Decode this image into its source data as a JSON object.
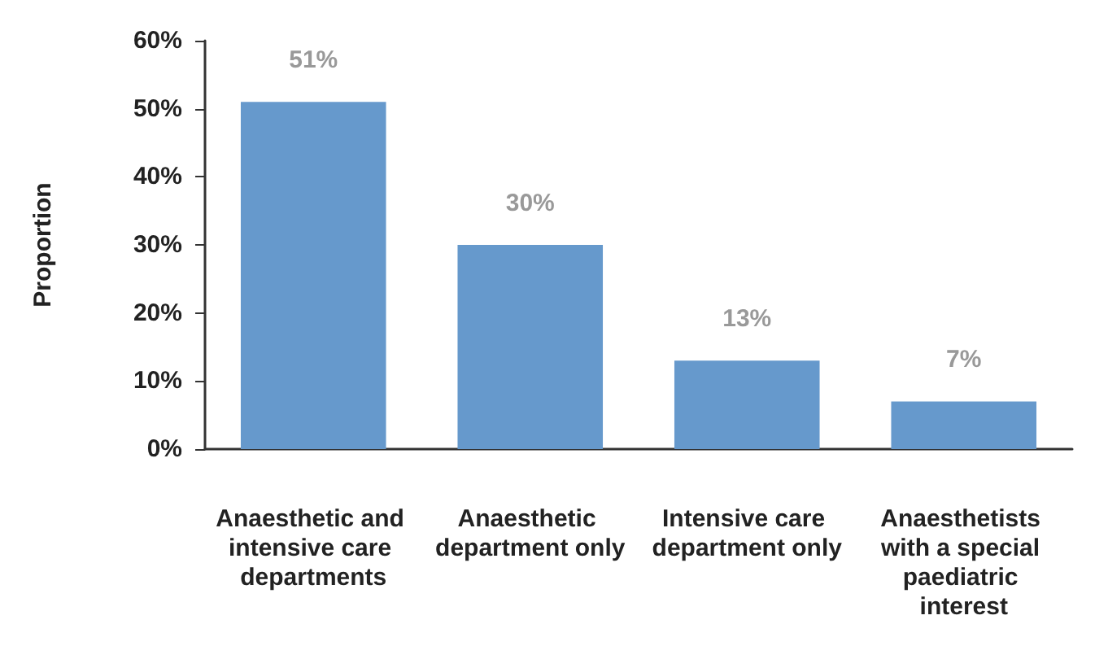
{
  "chart_data": {
    "type": "bar",
    "ylabel": "Proportion",
    "categories": [
      "Anaesthetic and intensive care departments",
      "Anaesthetic department only",
      "Intensive care department only",
      "Anaesthetists with a special paediatric interest"
    ],
    "values": [
      51,
      30,
      13,
      7
    ],
    "color": "#6699cc",
    "value_labels": [
      "51%",
      "30%",
      "13%",
      "7%"
    ],
    "ylim": [
      0,
      60
    ],
    "yticks": [
      {
        "value": 0,
        "label": "0%"
      },
      {
        "value": 10,
        "label": "10%"
      },
      {
        "value": 20,
        "label": "20%"
      },
      {
        "value": 30,
        "label": "30%"
      },
      {
        "value": 40,
        "label": "40%"
      },
      {
        "value": 50,
        "label": "50%"
      },
      {
        "value": 60,
        "label": "60%"
      }
    ],
    "grid": false
  }
}
